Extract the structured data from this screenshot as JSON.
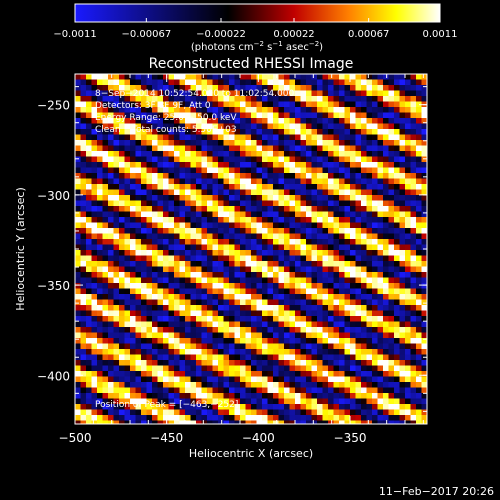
{
  "chart_data": {
    "type": "heatmap",
    "title": "Reconstructed RHESSI Image",
    "xlabel": "Heliocentric X (arcsec)",
    "ylabel": "Heliocentric Y (arcsec)",
    "xlim": [
      -500,
      -308
    ],
    "ylim": [
      -427,
      -233
    ],
    "x_ticks": [
      -500,
      -450,
      -400,
      -350
    ],
    "x_tick_labels": [
      "−500",
      "−450",
      "−400",
      "−350"
    ],
    "y_ticks": [
      -250,
      -300,
      -350,
      -400
    ],
    "y_tick_labels": [
      "−250",
      "−300",
      "−350",
      "−400"
    ],
    "colorbar": {
      "colormap": "blue-black-red-yellow-white",
      "colors": [
        "#1a1aff",
        "#000000",
        "#c00000",
        "#ff8000",
        "#ffff00",
        "#ffffff"
      ],
      "range": [
        -0.0011,
        0.0011
      ],
      "tick_values": [
        -0.0011,
        -0.00067,
        -0.00022,
        0.00022,
        0.00067,
        0.0011
      ],
      "tick_labels": [
        "−0.0011",
        "−0.00067",
        "−0.00022",
        "0.00022",
        "0.00067",
        "0.0011"
      ],
      "unit_parts": [
        "(photons cm",
        "−2",
        " s",
        "−1",
        " asec",
        "−2",
        ")"
      ]
    },
    "annotations": [
      "8−Sep−2014 10:52:54.000 to 11:02:54.000",
      "Detectors: 3F 8F 9F, Att 0",
      "Energy Range: 25.0 − 50.0 keV",
      "Clean    Total counts: 5.50E+03",
      "Position of Peak = [−463,−252]"
    ],
    "pattern": {
      "description": "diagonal fringes",
      "fringe_period_arcsec": 19,
      "fringe_direction_deg": 25
    }
  },
  "timestamp": "11−Feb−2017 20:26"
}
